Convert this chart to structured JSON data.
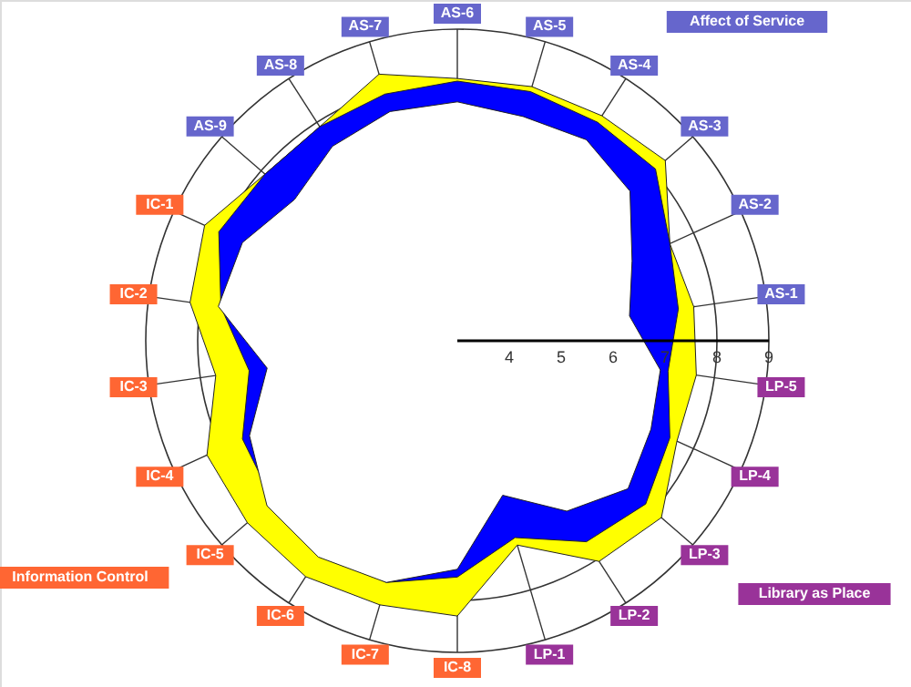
{
  "chart_data": {
    "type": "radar",
    "categories": [
      "AS-6",
      "AS-5",
      "AS-4",
      "AS-3",
      "AS-2",
      "AS-1",
      "LP-5",
      "LP-4",
      "LP-3",
      "LP-2",
      "LP-1",
      "IC-8",
      "IC-7",
      "IC-6",
      "IC-5",
      "IC-4",
      "IC-3",
      "IC-2",
      "IC-1",
      "AS-9",
      "AS-8",
      "AS-7"
    ],
    "series": [
      {
        "color": "#ffff00",
        "values": [
          8.05,
          8.1,
          8.15,
          8.3,
          7.5,
          7.6,
          7.65,
          7.65,
          8.2,
          8.05,
          7.1,
          8.3,
          8.3,
          8.4,
          8.35,
          8.3,
          7.7,
          8.2,
          8.35,
          7.9,
          7.9,
          8.35
        ]
      },
      {
        "color": "#0000ff",
        "values": [
          8.0,
          8.0,
          8.0,
          8.05,
          7.5,
          7.3,
          7.1,
          7.5,
          7.8,
          7.6,
          6.95,
          7.55,
          7.85,
          7.85,
          7.7,
          7.55,
          7.05,
          7.6,
          8.05,
          7.9,
          7.9,
          7.95
        ]
      },
      {
        "color": "#ffffff",
        "values": [
          7.6,
          7.5,
          7.6,
          7.4,
          6.7,
          6.35,
          6.95,
          7.1,
          7.35,
          6.9,
          6.1,
          7.4,
          7.85,
          7.95,
          7.85,
          7.4,
          6.7,
          7.65,
          7.55,
          7.15,
          7.45,
          7.6
        ]
      }
    ],
    "ylim": [
      3,
      9
    ],
    "yticks": [
      4,
      5,
      6,
      7,
      8,
      9
    ],
    "grid": true,
    "annotations": [
      "Affect of Service",
      "Library as Place",
      "Information Control"
    ]
  }
}
